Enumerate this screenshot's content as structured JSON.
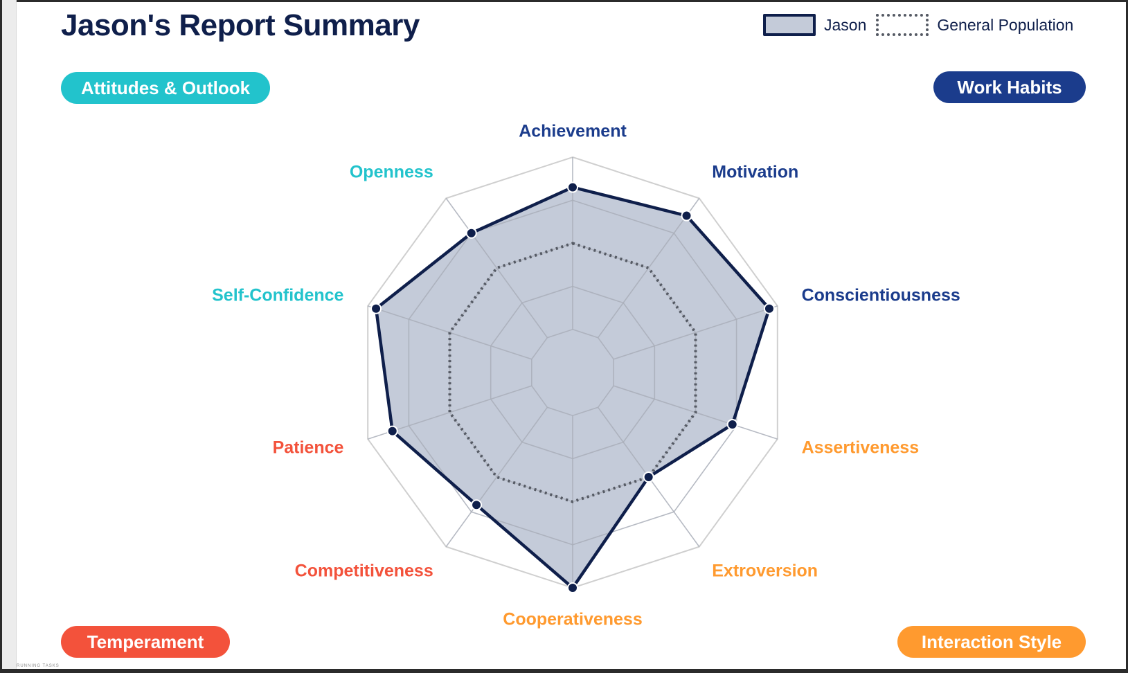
{
  "title": "Jason's Report Summary",
  "legend": {
    "jason": "Jason",
    "population": "General Population"
  },
  "categories": {
    "attitudes": "Attitudes & Outlook",
    "work": "Work Habits",
    "temperament": "Temperament",
    "interaction": "Interaction Style"
  },
  "colors": {
    "attitudes": "#22c3cc",
    "work": "#1b3c8c",
    "temperament": "#f3523b",
    "interaction": "#ff9a2f",
    "jason_line": "#0f1f4b",
    "jason_fill": "#c4cbd9",
    "population_line": "#555a64",
    "grid": "#cfcfcf",
    "inner_grid": "#a9aeb8"
  },
  "chart_data": {
    "type": "radar",
    "title": "Jason's Report Summary",
    "axes": [
      "Achievement",
      "Motivation",
      "Conscientiousness",
      "Assertiveness",
      "Extroversion",
      "Cooperativeness",
      "Competitiveness",
      "Patience",
      "Self-Confidence",
      "Openness"
    ],
    "axis_groups": [
      "work",
      "work",
      "work",
      "interaction",
      "interaction",
      "interaction",
      "temperament",
      "temperament",
      "attitudes",
      "attitudes"
    ],
    "range": [
      0,
      5
    ],
    "levels": 5,
    "series": [
      {
        "name": "Jason",
        "values": [
          4.3,
          4.5,
          4.8,
          3.9,
          3.0,
          5.0,
          3.8,
          4.4,
          4.8,
          4.0
        ]
      },
      {
        "name": "General Population",
        "values": [
          3.0,
          3.0,
          3.0,
          3.0,
          3.0,
          3.0,
          3.0,
          3.0,
          3.0,
          3.0
        ]
      }
    ],
    "legend_position": "top-right",
    "grid": true
  },
  "footer_text": "RUNNING TASKS"
}
